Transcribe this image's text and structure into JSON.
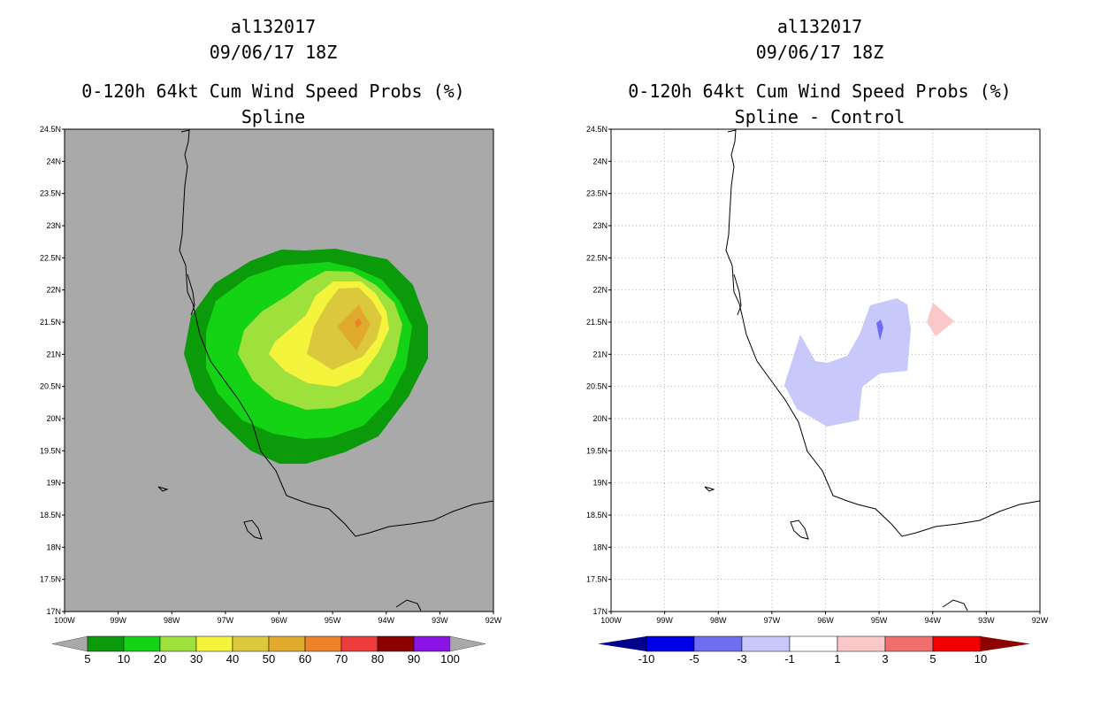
{
  "panels": [
    {
      "storm_id": "al132017",
      "datetime": "09/06/17 18Z",
      "product": "0-120h 64kt Cum Wind Speed Probs (%)",
      "subtitle": "Spline",
      "background": "#a9a9a9",
      "grid": false
    },
    {
      "storm_id": "al132017",
      "datetime": "09/06/17 18Z",
      "product": "0-120h 64kt Cum Wind Speed Probs (%)",
      "subtitle": "Spline - Control",
      "background": "#ffffff",
      "grid": true
    }
  ],
  "map": {
    "lat_labels": [
      "24.5N",
      "24N",
      "23.5N",
      "23N",
      "22.5N",
      "22N",
      "21.5N",
      "21N",
      "20.5N",
      "20N",
      "19.5N",
      "19N",
      "18.5N",
      "18N",
      "17.5N",
      "17N"
    ],
    "lon_labels": [
      "100W",
      "99W",
      "98W",
      "97W",
      "96W",
      "95W",
      "94W",
      "93W",
      "92W"
    ],
    "lat_range": [
      17,
      24.5
    ],
    "lon_range": [
      -100,
      -92
    ]
  },
  "legends": [
    {
      "labels": [
        "5",
        "10",
        "20",
        "30",
        "40",
        "50",
        "60",
        "70",
        "80",
        "90",
        "100"
      ],
      "colors": [
        "#0a9a0a",
        "#14d214",
        "#9ee03c",
        "#f4f43c",
        "#dcc83c",
        "#e0aa2c",
        "#ee8228",
        "#ee3c3c",
        "#8c0000",
        "#8a14e6"
      ],
      "end_color": "#a9a9a9"
    },
    {
      "labels": [
        "-10",
        "-5",
        "-3",
        "-1",
        "1",
        "3",
        "5",
        "10"
      ],
      "colors": [
        "#0000e6",
        "#6e6ef0",
        "#c8c8fa",
        "#ffffff",
        "#fac8c8",
        "#f06e6e",
        "#f00000"
      ],
      "left_end": "#00008c",
      "right_end": "#8c0000"
    }
  ]
}
